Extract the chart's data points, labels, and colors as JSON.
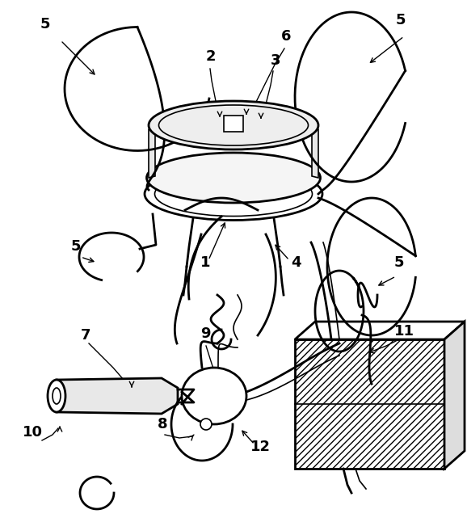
{
  "bg_color": "#ffffff",
  "line_color": "#000000",
  "figsize": [
    5.78,
    6.46
  ],
  "dpi": 100
}
